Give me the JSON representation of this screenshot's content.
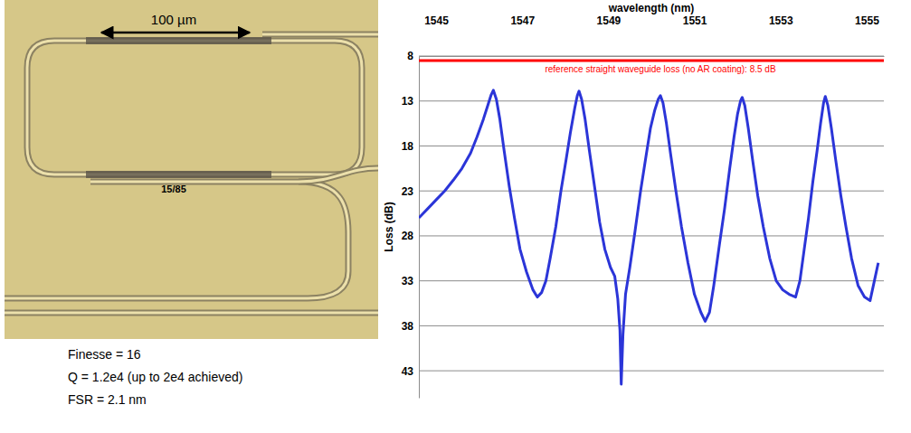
{
  "chart_data": {
    "type": "line",
    "x_label": "wavelength (nm)",
    "y_label": "Loss (dB)",
    "color": "#2b35d8",
    "grid": true,
    "xlim": [
      1544.6,
      1555.4
    ],
    "xticks": [
      1545,
      1547,
      1549,
      1551,
      1553,
      1555
    ],
    "ylim": [
      46,
      8
    ],
    "yticks": [
      8,
      13,
      18,
      23,
      28,
      33,
      38,
      43
    ],
    "annotations": [
      {
        "text": "reference straight waveguide loss (no AR coating): 8.5 dB",
        "value": 8.5,
        "color": "#ff0000"
      }
    ],
    "x": [
      1544.6,
      1544.8,
      1545.0,
      1545.2,
      1545.4,
      1545.6,
      1545.8,
      1545.95,
      1546.1,
      1546.2,
      1546.28,
      1546.33,
      1546.4,
      1546.48,
      1546.58,
      1546.7,
      1546.82,
      1546.95,
      1547.1,
      1547.25,
      1547.35,
      1547.45,
      1547.55,
      1547.65,
      1547.78,
      1547.9,
      1548.02,
      1548.12,
      1548.22,
      1548.28,
      1548.32,
      1548.38,
      1548.46,
      1548.56,
      1548.68,
      1548.8,
      1548.92,
      1549.05,
      1549.15,
      1549.22,
      1549.27,
      1549.3,
      1549.34,
      1549.4,
      1549.5,
      1549.62,
      1549.75,
      1549.88,
      1549.98,
      1550.08,
      1550.16,
      1550.21,
      1550.27,
      1550.35,
      1550.45,
      1550.57,
      1550.7,
      1550.85,
      1551.0,
      1551.15,
      1551.25,
      1551.35,
      1551.45,
      1551.58,
      1551.7,
      1551.82,
      1551.92,
      1552.0,
      1552.07,
      1552.11,
      1552.17,
      1552.25,
      1552.35,
      1552.47,
      1552.6,
      1552.75,
      1552.9,
      1553.05,
      1553.2,
      1553.35,
      1553.45,
      1553.55,
      1553.65,
      1553.75,
      1553.85,
      1553.93,
      1554.0,
      1554.04,
      1554.1,
      1554.18,
      1554.28,
      1554.4,
      1554.52,
      1554.65,
      1554.8,
      1554.95,
      1555.08,
      1555.18,
      1555.27
    ],
    "values": [
      26.0,
      25.0,
      24.0,
      23.0,
      21.8,
      20.5,
      18.8,
      17.0,
      15.0,
      13.5,
      12.3,
      11.8,
      12.8,
      15.0,
      18.5,
      22.5,
      26.0,
      29.5,
      32.0,
      34.0,
      34.8,
      34.3,
      33.0,
      30.5,
      27.0,
      23.0,
      19.5,
      16.5,
      13.8,
      12.4,
      11.9,
      12.8,
      15.0,
      18.5,
      22.5,
      26.5,
      29.5,
      31.5,
      32.5,
      35.0,
      38.5,
      44.5,
      39.0,
      34.5,
      31.5,
      27.5,
      23.0,
      19.0,
      16.0,
      14.0,
      12.8,
      12.4,
      13.2,
      15.5,
      19.0,
      23.0,
      27.0,
      31.0,
      34.5,
      36.5,
      37.5,
      36.5,
      33.5,
      29.0,
      25.0,
      20.5,
      17.0,
      14.5,
      13.0,
      12.6,
      13.5,
      16.0,
      19.5,
      23.5,
      27.0,
      30.5,
      33.0,
      34.0,
      34.5,
      34.8,
      33.0,
      29.5,
      26.0,
      22.0,
      18.5,
      15.5,
      13.2,
      12.5,
      13.5,
      16.0,
      19.5,
      23.5,
      27.0,
      30.5,
      33.5,
      34.8,
      35.2,
      33.0,
      31.0
    ]
  },
  "photo": {
    "scale_bar": "100 µm",
    "coupler_ratio": "15/85"
  },
  "notes": [
    "Finesse = 16",
    "Q = 1.2e4 (up to 2e4 achieved)",
    "FSR = 2.1 nm"
  ]
}
